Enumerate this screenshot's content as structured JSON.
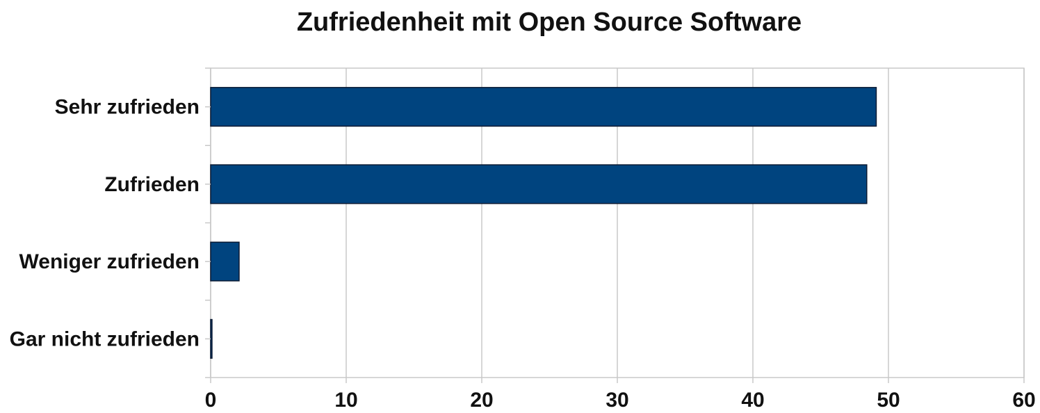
{
  "chart_data": {
    "type": "bar",
    "orientation": "horizontal",
    "title": "Zufriedenheit mit Open Source Software",
    "xlabel": "",
    "ylabel": "",
    "categories": [
      "Sehr zufrieden",
      "Zufrieden",
      "Weniger zufrieden",
      "Gar nicht zufrieden"
    ],
    "values": [
      49.1,
      48.4,
      2.1,
      0.1
    ],
    "xlim": [
      0,
      60
    ],
    "xticks": [
      0,
      10,
      20,
      30,
      40,
      50,
      60
    ],
    "grid": true,
    "legend": "none",
    "colors": {
      "bar": "#00447F",
      "bar_outline": "#0a1a33",
      "grid": "#c8c8c8"
    }
  }
}
